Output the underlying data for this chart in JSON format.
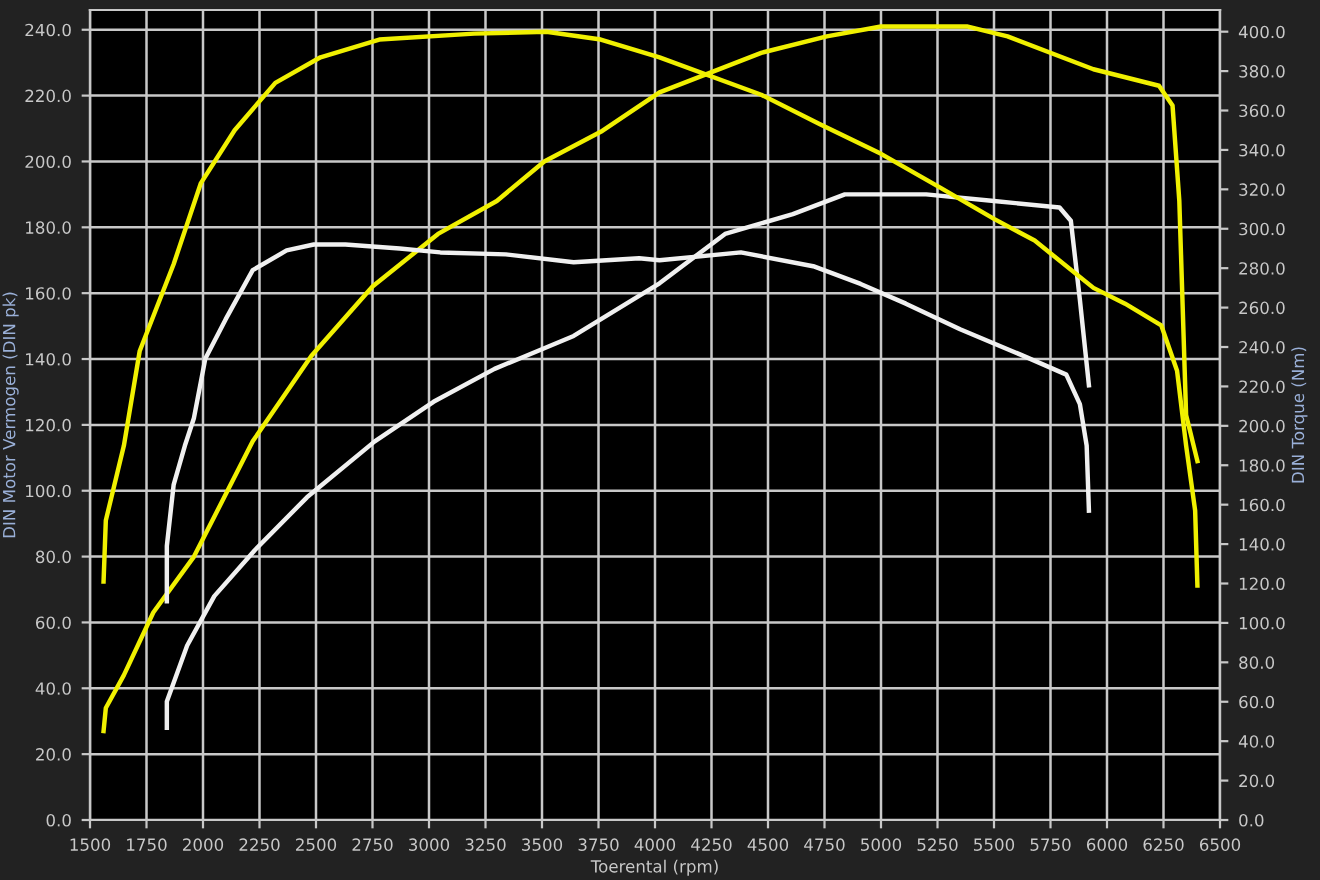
{
  "chart_data": {
    "type": "line",
    "xlabel": "Toerental (rpm)",
    "ylabel": "DIN Motor Vermogen (DIN pk)",
    "y2label": "DIN Torque (Nm)",
    "xlim": [
      1500,
      6500
    ],
    "xticks": [
      1500,
      1750,
      2000,
      2250,
      2500,
      2750,
      3000,
      3250,
      3500,
      3750,
      4000,
      4250,
      4500,
      4750,
      5000,
      5250,
      5500,
      5750,
      6000,
      6250,
      6500
    ],
    "ylim": [
      0,
      246
    ],
    "yticks": [
      {
        "value": 0,
        "label": "0.0"
      },
      {
        "value": 20,
        "label": "20.0"
      },
      {
        "value": 40,
        "label": "40.0"
      },
      {
        "value": 60,
        "label": "60.0"
      },
      {
        "value": 80,
        "label": "80.0"
      },
      {
        "value": 100,
        "label": "100.0"
      },
      {
        "value": 120,
        "label": "120.0"
      },
      {
        "value": 140,
        "label": "140.0"
      },
      {
        "value": 160,
        "label": "160.0"
      },
      {
        "value": 180,
        "label": "180.0"
      },
      {
        "value": 200,
        "label": "200.0"
      },
      {
        "value": 220,
        "label": "220.0"
      },
      {
        "value": 240,
        "label": "240.0"
      }
    ],
    "y2lim": [
      0,
      411
    ],
    "y2ticks": [
      {
        "value": 0,
        "label": "0.0"
      },
      {
        "value": 20,
        "label": "20.0"
      },
      {
        "value": 40,
        "label": "40.0"
      },
      {
        "value": 60,
        "label": "60.0"
      },
      {
        "value": 80,
        "label": "80.0"
      },
      {
        "value": 100,
        "label": "100.0"
      },
      {
        "value": 120,
        "label": "120.0"
      },
      {
        "value": 140,
        "label": "140.0"
      },
      {
        "value": 160,
        "label": "160.0"
      },
      {
        "value": 180,
        "label": "180.0"
      },
      {
        "value": 200,
        "label": "200.0"
      },
      {
        "value": 220,
        "label": "220.0"
      },
      {
        "value": 240,
        "label": "240.0"
      },
      {
        "value": 260,
        "label": "260.0"
      },
      {
        "value": 280,
        "label": "280.0"
      },
      {
        "value": 300,
        "label": "300.0"
      },
      {
        "value": 320,
        "label": "320.0"
      },
      {
        "value": 340,
        "label": "340.0"
      },
      {
        "value": 360,
        "label": "360.0"
      },
      {
        "value": 380,
        "label": "380.0"
      },
      {
        "value": 400,
        "label": "400.0"
      }
    ],
    "grid": true,
    "line_style": "solid",
    "marker": "none",
    "series": [
      {
        "color": "#f0f000",
        "axis": "y2",
        "x": [
          1560,
          1570,
          1650,
          1720,
          1870,
          1990,
          2140,
          2320,
          2520,
          2780,
          3200,
          3520,
          3760,
          4020,
          4470,
          4730,
          5000,
          5260,
          5500,
          5680,
          5940,
          6080,
          6240,
          6310,
          6350,
          6390,
          6400
        ],
        "values": [
          121,
          152,
          190,
          238,
          282,
          323,
          350,
          374,
          387,
          396,
          399,
          400,
          396,
          387,
          368,
          353,
          338,
          321,
          305,
          294,
          270,
          262,
          251,
          228,
          190,
          157,
          119
        ]
      },
      {
        "color": "#f0f000",
        "x": [
          1560,
          1570,
          1650,
          1780,
          1960,
          2220,
          2480,
          2750,
          3040,
          3300,
          3510,
          3760,
          4020,
          4470,
          4760,
          5000,
          5380,
          5560,
          5940,
          6230,
          6290,
          6320,
          6350,
          6400
        ],
        "values": [
          27,
          34,
          44,
          63,
          80,
          115,
          141,
          162,
          178,
          188,
          200,
          209,
          221,
          233,
          238,
          241,
          241,
          238,
          228,
          223,
          217,
          188,
          123,
          109
        ]
      },
      {
        "color": "#f0f0f0",
        "axis": "y2",
        "x": [
          1840,
          1840,
          1870,
          1920,
          1960,
          2010,
          2100,
          2220,
          2370,
          2490,
          2630,
          2870,
          3050,
          3340,
          3640,
          3930,
          4020,
          4380,
          4700,
          4910,
          5110,
          5350,
          5620,
          5820,
          5880,
          5910,
          5920
        ],
        "values": [
          111,
          139,
          170,
          190,
          204,
          234,
          254,
          279,
          289,
          292,
          292,
          290,
          288,
          287,
          283,
          285,
          284,
          288,
          281,
          272,
          262,
          249,
          236,
          226,
          211,
          190,
          157
        ]
      },
      {
        "color": "#f0f0f0",
        "x": [
          1840,
          1840,
          1930,
          2050,
          2230,
          2460,
          2760,
          3020,
          3290,
          3640,
          4020,
          4310,
          4610,
          4840,
          5200,
          5500,
          5790,
          5840,
          5880,
          5920
        ],
        "values": [
          28,
          36,
          53,
          68,
          82,
          98,
          115,
          127,
          137,
          147,
          163,
          178,
          184,
          190,
          190,
          188,
          186,
          182,
          158,
          132
        ]
      }
    ]
  }
}
